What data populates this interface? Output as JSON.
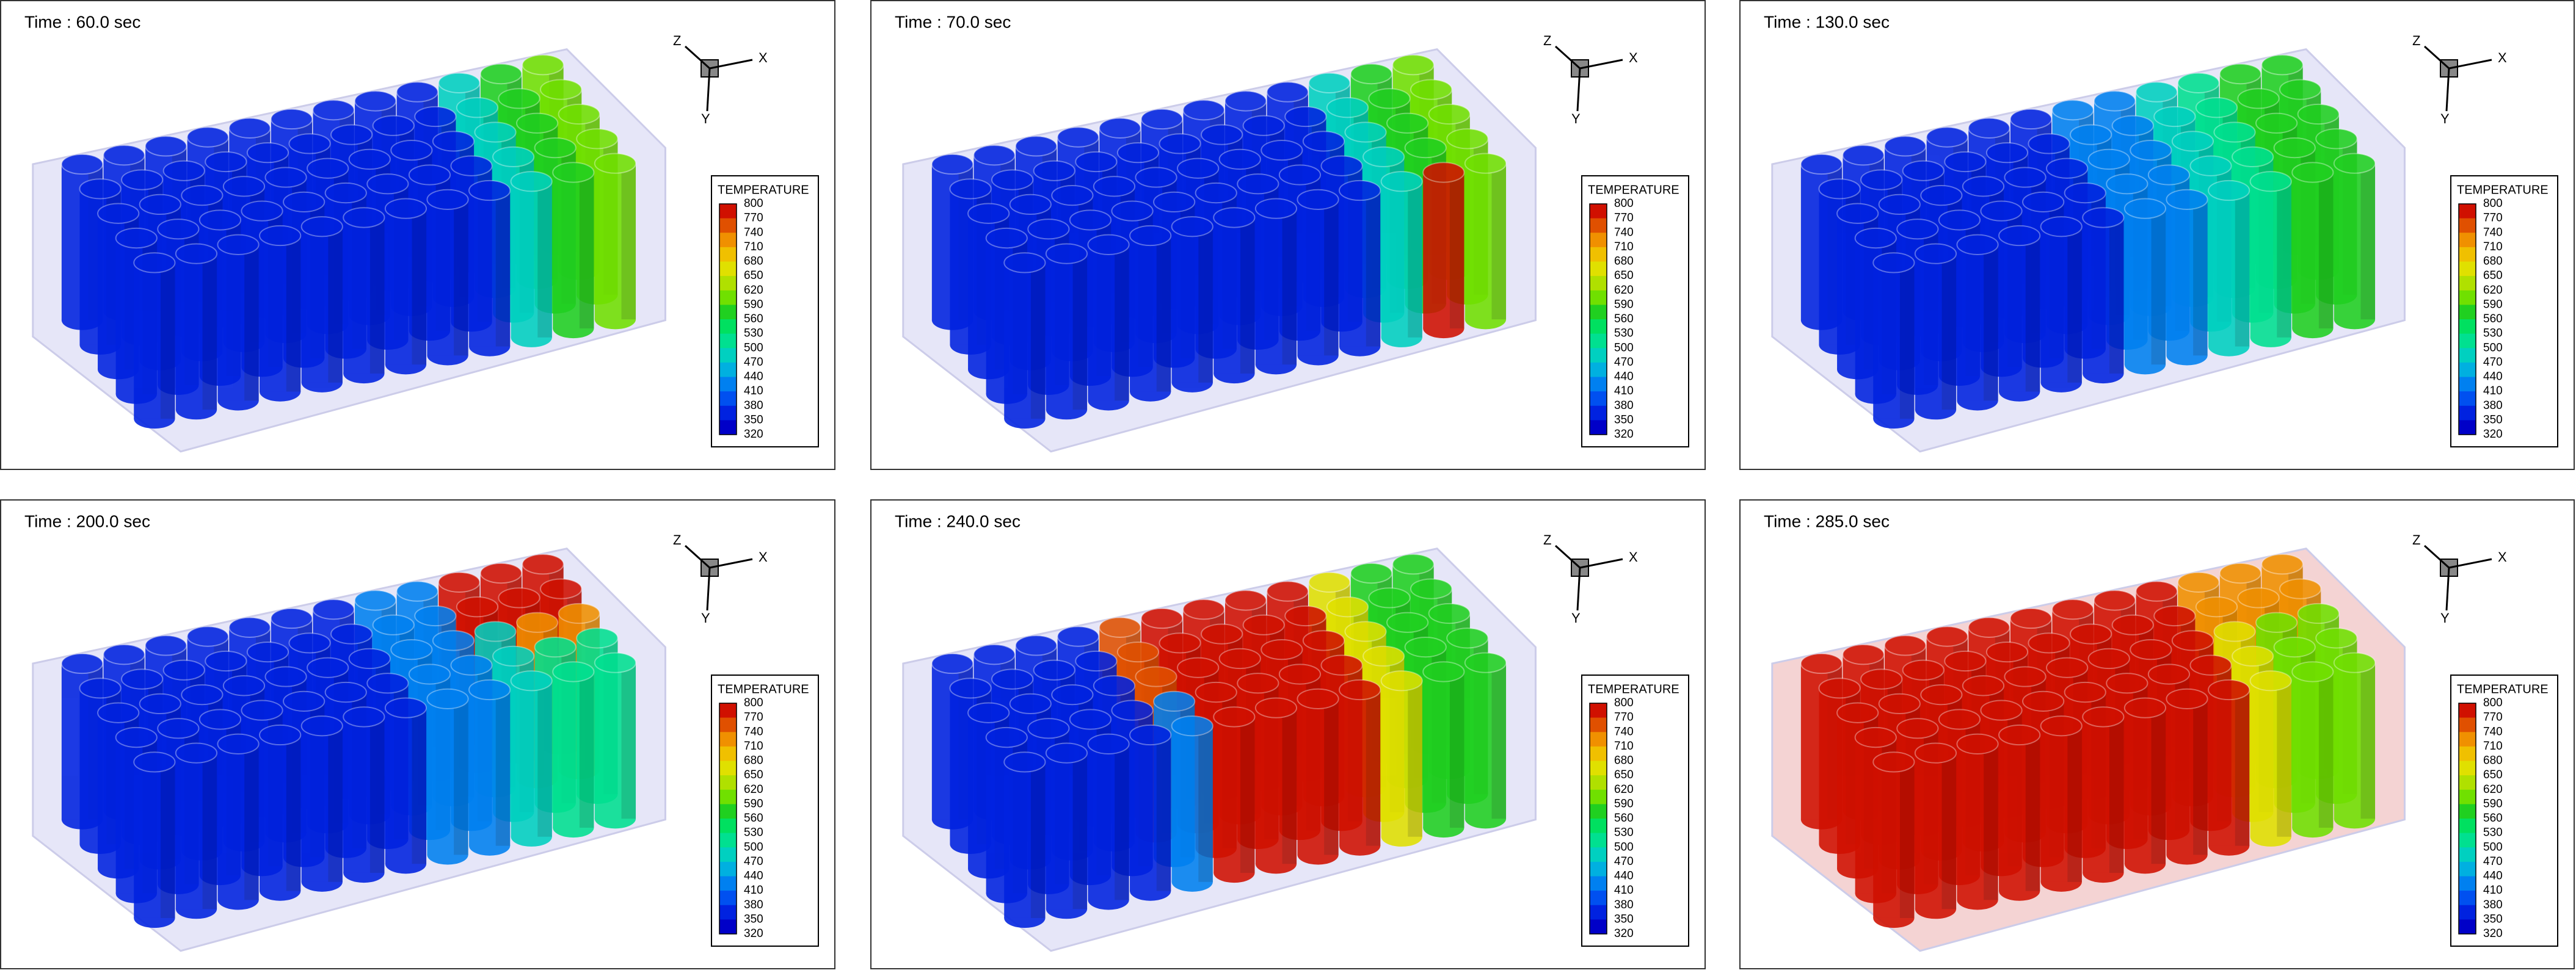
{
  "panels": [
    {
      "time": "Time : 60.0 sec"
    },
    {
      "time": "Time : 70.0 sec"
    },
    {
      "time": "Time : 130.0 sec"
    },
    {
      "time": "Time : 200.0 sec"
    },
    {
      "time": "Time : 240.0 sec"
    },
    {
      "time": "Time : 285.0 sec"
    }
  ],
  "axes": {
    "x": "X",
    "y": "Y",
    "z": "Z"
  },
  "legend": {
    "title": "TEMPERATURE",
    "labels": [
      "800",
      "770",
      "740",
      "710",
      "680",
      "650",
      "620",
      "590",
      "560",
      "530",
      "500",
      "470",
      "440",
      "410",
      "380",
      "350",
      "320"
    ]
  }
}
